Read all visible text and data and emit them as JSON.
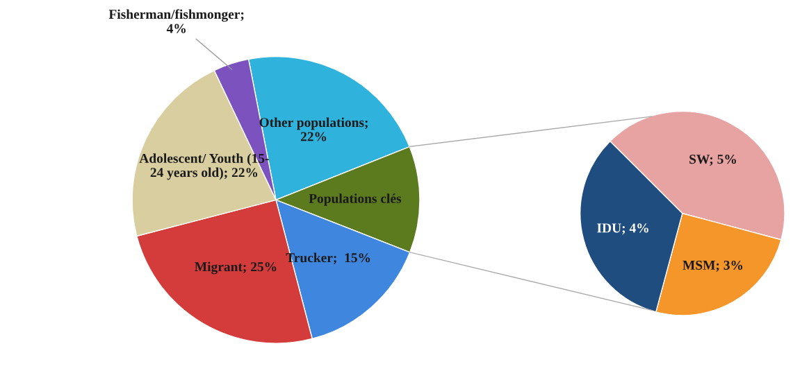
{
  "chart_data": [
    {
      "type": "pie",
      "categories": [
        "Other populations;\n22%",
        "Populations clés",
        "Trucker;  15%",
        "Migrant; 25%",
        "Adolescent/ Youth (15-\n24 years old); 22%",
        "Fisherman/fishmonger;\n4%"
      ],
      "values": [
        22,
        12,
        15,
        25,
        22,
        4
      ],
      "colors": [
        "#2fb3dd",
        "#5c7a1e",
        "#3f86de",
        "#d43b3b",
        "#d8cea0",
        "#7c52bf"
      ]
    },
    {
      "type": "pie",
      "categories": [
        "SW; 5%",
        "MSM; 3%",
        "IDU; 4%"
      ],
      "values": [
        5,
        3,
        4
      ],
      "colors": [
        "#e7a2a2",
        "#f4962a",
        "#1f4d80"
      ]
    }
  ]
}
